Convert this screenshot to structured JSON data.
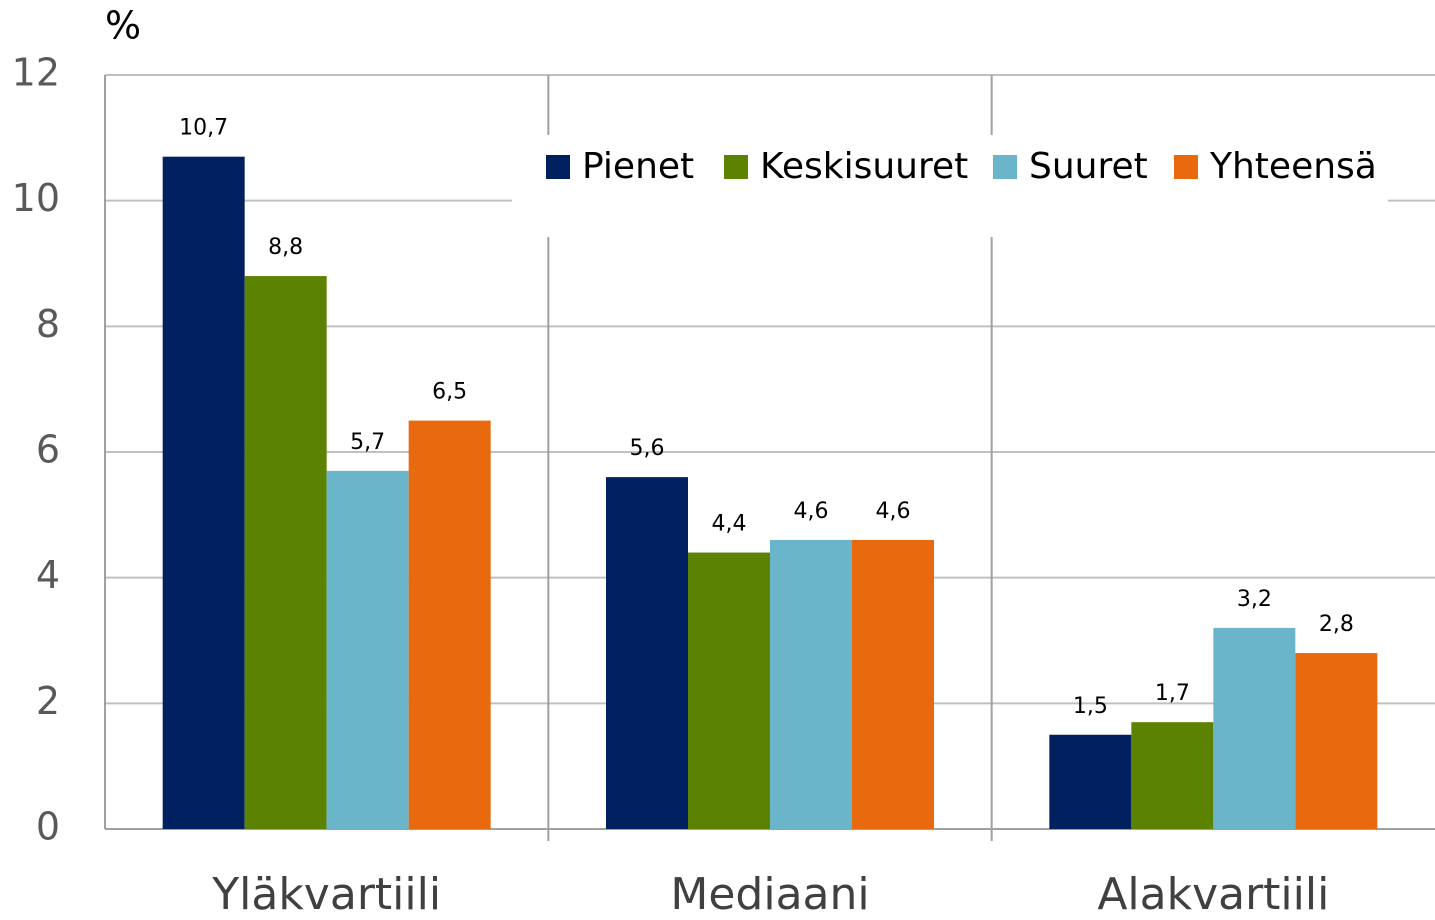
{
  "chart_data": {
    "type": "bar",
    "y_label": "%",
    "categories": [
      "Yläkvartiili",
      "Mediaani",
      "Alakvartiili"
    ],
    "series": [
      {
        "name": "Pienet",
        "color": "#002060",
        "values": [
          10.7,
          5.6,
          1.5
        ],
        "value_labels": [
          "10,7",
          "5,6",
          "1,5"
        ]
      },
      {
        "name": "Keskisuuret",
        "color": "#5b8200",
        "values": [
          8.8,
          4.4,
          1.7
        ],
        "value_labels": [
          "8,8",
          "4,4",
          "1,7"
        ]
      },
      {
        "name": "Suuret",
        "color": "#6ab5c9",
        "values": [
          5.7,
          4.6,
          3.2
        ],
        "value_labels": [
          "5,7",
          "4,6",
          "3,2"
        ]
      },
      {
        "name": "Yhteensä",
        "color": "#e8690e",
        "values": [
          6.5,
          4.6,
          2.8
        ],
        "value_labels": [
          "6,5",
          "4,6",
          "2,8"
        ]
      }
    ],
    "ylim": [
      0,
      12
    ],
    "yticks": [
      0,
      2,
      4,
      6,
      8,
      10,
      12
    ],
    "grid": true,
    "legend": "top"
  }
}
